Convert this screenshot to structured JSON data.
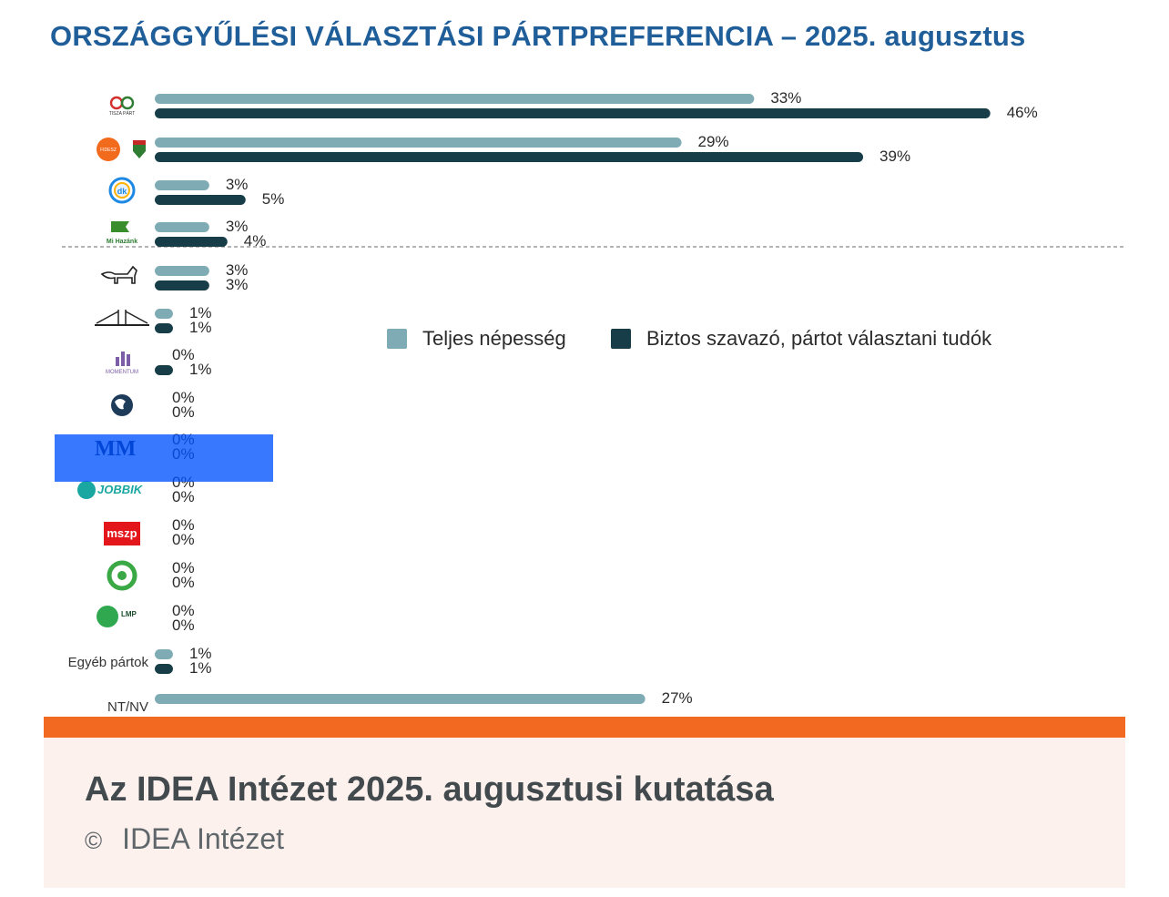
{
  "header": {
    "title": "ORSZÁGGYŰLÉSI VÁLASZTÁSI PÁRTPREFERENCIA – 2025. augusztus"
  },
  "chart_data": {
    "type": "bar",
    "orientation": "horizontal",
    "title": "ORSZÁGGYŰLÉSI VÁLASZTÁSI PÁRTPREFERENCIA – 2025. augusztus",
    "xlim": [
      0,
      50
    ],
    "value_suffix": "%",
    "legend_position": "center-right",
    "categories": [
      {
        "logo": "tisza-part-logo",
        "logo_text": "TISZA PÁRT"
      },
      {
        "logo": "fidesz-kdnp-logo",
        "logo_text": "FIDESZ"
      },
      {
        "logo": "dk-logo",
        "logo_text": "dk"
      },
      {
        "logo": "mi-hazank-logo",
        "logo_text": "Mi Hazánk"
      },
      {
        "logo": "mkkp-dog-logo",
        "logo_text": ""
      },
      {
        "logo": "bridge-party-logo",
        "logo_text": ""
      },
      {
        "logo": "momentum-logo",
        "logo_text": "MOMENTUM"
      },
      {
        "logo": "globe-party-logo",
        "logo_text": ""
      },
      {
        "logo": "mm-logo",
        "logo_text": "MM"
      },
      {
        "logo": "jobbik-logo",
        "logo_text": "JOBBIK"
      },
      {
        "logo": "mszp-logo",
        "logo_text": "mszp"
      },
      {
        "logo": "green-party-logo",
        "logo_text": ""
      },
      {
        "logo": "lmp-logo",
        "logo_text": "LMP"
      },
      {
        "label": "Egyéb pártok"
      },
      {
        "label": "NT/NV"
      }
    ],
    "series": [
      {
        "name": "Teljes népesség",
        "color": "#7fabb5",
        "values": [
          33,
          29,
          3,
          3,
          3,
          1,
          0,
          0,
          0,
          0,
          0,
          0,
          0,
          1,
          27
        ]
      },
      {
        "name": "Biztos szavazó, pártot választani tudók",
        "color": "#173e48",
        "values": [
          46,
          39,
          5,
          4,
          3,
          1,
          1,
          0,
          0,
          0,
          0,
          0,
          0,
          1,
          null
        ]
      }
    ],
    "separator_after_index": 3
  },
  "footer": {
    "caption": "Az IDEA Intézet 2025. augusztusi kutatása",
    "copyright_symbol": "©",
    "credit": "IDEA Intézet"
  },
  "colors": {
    "title": "#1f5e99",
    "accent_bar": "#f26a22",
    "footer_bg": "#fdf1ee",
    "selection": "#0052ff"
  }
}
